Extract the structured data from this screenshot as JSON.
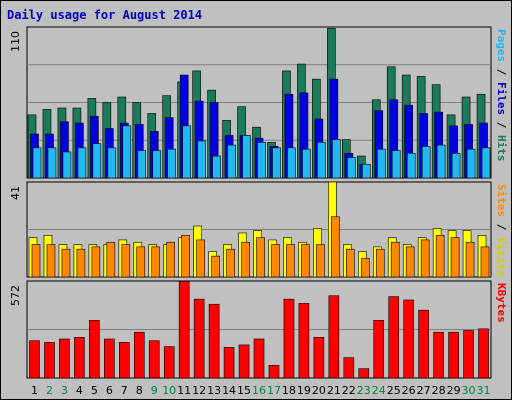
{
  "title": "Daily usage for August 2014",
  "colors": {
    "hits": "#1a7a5a",
    "files": "#0000e0",
    "pages": "#20b8f0",
    "sites": "#ff8800",
    "visits": "#ffff00",
    "kbytes": "#ff0000",
    "weekend_label": "#008040",
    "weekday_label": "#000000"
  },
  "chart_data": [
    {
      "type": "bar",
      "name": "pages-files-hits",
      "categories": [
        "1",
        "2",
        "3",
        "4",
        "5",
        "6",
        "7",
        "8",
        "9",
        "10",
        "11",
        "12",
        "13",
        "14",
        "15",
        "16",
        "17",
        "18",
        "19",
        "20",
        "21",
        "22",
        "23",
        "24",
        "25",
        "26",
        "27",
        "28",
        "29",
        "30",
        "31"
      ],
      "weekend": [
        false,
        true,
        true,
        false,
        false,
        false,
        false,
        false,
        true,
        true,
        false,
        false,
        false,
        false,
        false,
        true,
        true,
        false,
        false,
        false,
        false,
        false,
        true,
        true,
        false,
        false,
        false,
        false,
        false,
        true,
        true
      ],
      "ymax_label": "110",
      "ylim": [
        0,
        110
      ],
      "right_label": [
        {
          "text": "Pages",
          "color": "#20b8f0"
        },
        {
          "text": " / ",
          "color": "#000000"
        },
        {
          "text": "Files",
          "color": "#0000e0"
        },
        {
          "text": " / ",
          "color": "#000000"
        },
        {
          "text": "Hits",
          "color": "#1a7a5a"
        }
      ],
      "series": [
        {
          "name": "Hits",
          "values": [
            46,
            50,
            51,
            51,
            58,
            55,
            59,
            55,
            47,
            60,
            70,
            78,
            64,
            42,
            52,
            37,
            26,
            78,
            83,
            72,
            109,
            28,
            16,
            57,
            81,
            75,
            74,
            68,
            46,
            59,
            61
          ]
        },
        {
          "name": "Files",
          "values": [
            32,
            32,
            41,
            40,
            45,
            36,
            40,
            39,
            34,
            44,
            75,
            56,
            55,
            31,
            31,
            29,
            23,
            61,
            62,
            43,
            72,
            18,
            10,
            49,
            57,
            53,
            47,
            48,
            38,
            39,
            40
          ]
        },
        {
          "name": "Pages",
          "values": [
            22,
            22,
            19,
            22,
            25,
            22,
            38,
            20,
            20,
            21,
            38,
            27,
            16,
            24,
            31,
            26,
            22,
            22,
            21,
            26,
            28,
            15,
            10,
            21,
            20,
            18,
            23,
            24,
            18,
            21,
            22
          ]
        }
      ]
    },
    {
      "type": "bar",
      "name": "sites-visits",
      "categories": [
        "1",
        "2",
        "3",
        "4",
        "5",
        "6",
        "7",
        "8",
        "9",
        "10",
        "11",
        "12",
        "13",
        "14",
        "15",
        "16",
        "17",
        "18",
        "19",
        "20",
        "21",
        "22",
        "23",
        "24",
        "25",
        "26",
        "27",
        "28",
        "29",
        "30",
        "31"
      ],
      "ymax_label": "41",
      "ylim": [
        0,
        41
      ],
      "right_label": [
        {
          "text": "Sites",
          "color": "#ff8800"
        },
        {
          "text": " / ",
          "color": "#000000"
        },
        {
          "text": "Visits",
          "color": "#d0d000"
        }
      ],
      "series": [
        {
          "name": "Visits",
          "values": [
            17,
            18,
            14,
            14,
            14,
            14,
            16,
            15,
            14,
            14,
            17,
            22,
            11,
            14,
            19,
            20,
            16,
            17,
            15,
            21,
            41,
            14,
            11,
            13,
            17,
            14,
            17,
            21,
            20,
            20,
            18
          ]
        },
        {
          "name": "Sites",
          "values": [
            14,
            14,
            12,
            12,
            13,
            15,
            14,
            13,
            13,
            15,
            18,
            16,
            9,
            12,
            15,
            17,
            14,
            14,
            14,
            14,
            26,
            12,
            8,
            12,
            15,
            13,
            16,
            18,
            17,
            15,
            13
          ]
        }
      ]
    },
    {
      "type": "bar",
      "name": "kbytes",
      "categories": [
        "1",
        "2",
        "3",
        "4",
        "5",
        "6",
        "7",
        "8",
        "9",
        "10",
        "11",
        "12",
        "13",
        "14",
        "15",
        "16",
        "17",
        "18",
        "19",
        "20",
        "21",
        "22",
        "23",
        "24",
        "25",
        "26",
        "27",
        "28",
        "29",
        "30",
        "31"
      ],
      "ymax_label": "572",
      "ylim": [
        0,
        572
      ],
      "right_label": [
        {
          "text": "KBytes",
          "color": "#ff0000"
        }
      ],
      "series": [
        {
          "name": "KBytes",
          "values": [
            220,
            210,
            230,
            240,
            340,
            230,
            210,
            270,
            220,
            185,
            570,
            465,
            435,
            180,
            195,
            230,
            75,
            465,
            440,
            240,
            485,
            120,
            55,
            340,
            480,
            460,
            400,
            270,
            270,
            280,
            290
          ]
        }
      ]
    }
  ]
}
